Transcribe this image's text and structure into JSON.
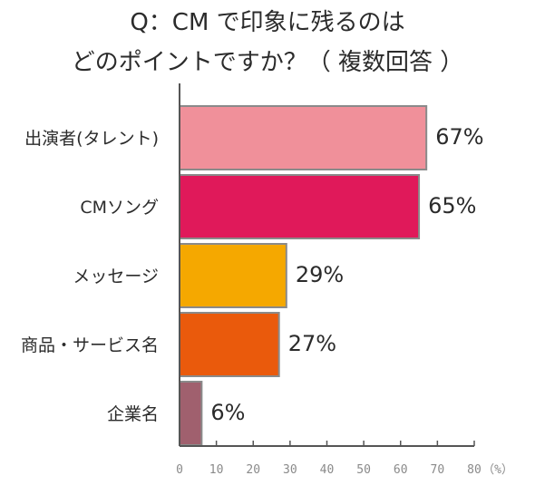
{
  "title_line1": "Q：CM で印象に残るのは",
  "title_line2": "どのポイントですか？（ 複数回答 ）",
  "chart_data": {
    "type": "bar",
    "orientation": "horizontal",
    "title": "Q：CM で印象に残るのは どのポイントですか？（ 複数回答 ）",
    "categories": [
      "出演者(タレント)",
      "CMソング",
      "メッセージ",
      "商品・サービス名",
      "企業名"
    ],
    "values": [
      67,
      65,
      29,
      27,
      6
    ],
    "value_labels": [
      "67%",
      "65%",
      "29%",
      "27%",
      "6%"
    ],
    "colors": [
      "#f0909a",
      "#e0195a",
      "#f5a800",
      "#ea5a0c",
      "#a0606e"
    ],
    "bar_border": "#8a8a8a",
    "xlim": [
      0,
      80
    ],
    "xticks": [
      "0",
      "10",
      "20",
      "30",
      "40",
      "50",
      "60",
      "70",
      "80"
    ],
    "xunit": "（%）",
    "grid": false
  }
}
